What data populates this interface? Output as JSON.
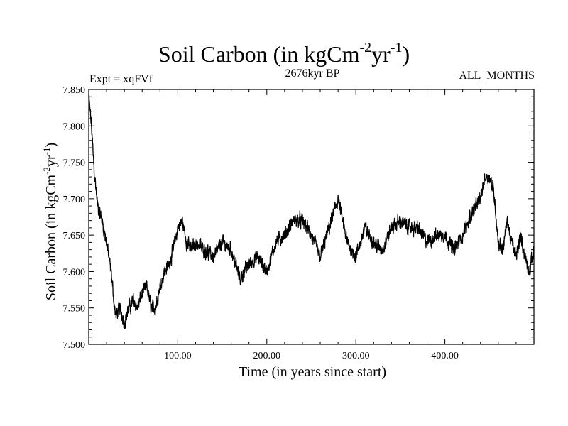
{
  "title": {
    "main": "Soil Carbon (in kgCm",
    "exp1": "-2",
    "mid": "yr",
    "exp2": "-1",
    "close": ")"
  },
  "subtitle_left": "Expt = xqFVf",
  "subtitle_center": "2676kyr BP",
  "subtitle_right": "ALL_MONTHS",
  "xlabel": "Time (in years since start)",
  "ylabel": {
    "main": "Soil Carbon (in kgCm",
    "exp1": "-2",
    "mid": "yr",
    "exp2": "-1",
    "close": ")"
  },
  "chart_data": {
    "type": "line",
    "title": "Soil Carbon (in kgCm-2yr-1)",
    "xlabel": "Time (in years since start)",
    "ylabel": "Soil Carbon (in kgCm-2yr-1)",
    "xlim": [
      0,
      500
    ],
    "ylim": [
      7.5,
      7.85
    ],
    "xticks": [
      100,
      200,
      300,
      400
    ],
    "xtick_labels": [
      "100.00",
      "200.00",
      "300.00",
      "400.00"
    ],
    "yticks": [
      7.5,
      7.55,
      7.6,
      7.65,
      7.7,
      7.75,
      7.8,
      7.85
    ],
    "ytick_labels": [
      "7.500",
      "7.550",
      "7.600",
      "7.650",
      "7.700",
      "7.750",
      "7.800",
      "7.850"
    ],
    "noise_amplitude": 0.012,
    "series": [
      {
        "name": "Soil Carbon",
        "color": "#000000",
        "x": [
          0,
          3,
          6,
          10,
          15,
          20,
          25,
          30,
          35,
          40,
          45,
          50,
          55,
          60,
          65,
          70,
          75,
          80,
          85,
          90,
          95,
          100,
          105,
          110,
          115,
          120,
          130,
          140,
          150,
          160,
          170,
          180,
          190,
          200,
          210,
          220,
          230,
          240,
          250,
          260,
          270,
          280,
          290,
          300,
          310,
          320,
          330,
          340,
          350,
          360,
          370,
          380,
          390,
          400,
          410,
          420,
          430,
          440,
          445,
          450,
          455,
          460,
          465,
          470,
          475,
          480,
          485,
          490,
          495,
          500
        ],
        "values": [
          7.84,
          7.8,
          7.74,
          7.69,
          7.67,
          7.64,
          7.6,
          7.54,
          7.55,
          7.53,
          7.55,
          7.56,
          7.55,
          7.57,
          7.58,
          7.55,
          7.55,
          7.58,
          7.6,
          7.61,
          7.63,
          7.66,
          7.67,
          7.64,
          7.63,
          7.64,
          7.63,
          7.62,
          7.64,
          7.63,
          7.59,
          7.61,
          7.62,
          7.6,
          7.64,
          7.65,
          7.67,
          7.67,
          7.65,
          7.62,
          7.66,
          7.7,
          7.64,
          7.62,
          7.66,
          7.64,
          7.63,
          7.66,
          7.67,
          7.66,
          7.66,
          7.64,
          7.65,
          7.65,
          7.63,
          7.65,
          7.68,
          7.7,
          7.73,
          7.73,
          7.71,
          7.64,
          7.63,
          7.67,
          7.64,
          7.62,
          7.65,
          7.62,
          7.6,
          7.63
        ]
      }
    ]
  }
}
